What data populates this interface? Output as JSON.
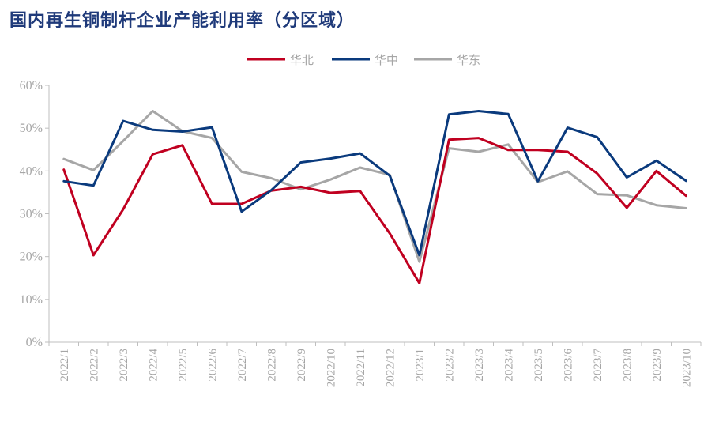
{
  "chart_data": {
    "type": "line",
    "title": "国内再生铜制杆企业产能利用率（分区域）",
    "xlabel": "",
    "ylabel": "",
    "ylim": [
      0,
      60
    ],
    "y_ticks": [
      "0%",
      "10%",
      "20%",
      "30%",
      "40%",
      "50%",
      "60%"
    ],
    "legend_position": "top-center",
    "grid": false,
    "categories": [
      "2022/1",
      "2022/2",
      "2022/3",
      "2022/4",
      "2022/5",
      "2022/6",
      "2022/7",
      "2022/8",
      "2022/9",
      "2022/10",
      "2022/11",
      "2022/12",
      "2023/1",
      "2023/2",
      "2023/3",
      "2023/4",
      "2023/5",
      "2023/6",
      "2023/7",
      "2023/8",
      "2023/9",
      "2023/10"
    ],
    "series": [
      {
        "name": "华北",
        "color": "#c00020",
        "values": [
          40.3,
          20.3,
          31.0,
          43.9,
          46.0,
          32.3,
          32.3,
          35.4,
          36.3,
          34.9,
          35.3,
          25.4,
          13.8,
          47.3,
          47.7,
          44.9,
          44.9,
          44.5,
          39.4,
          31.4,
          40.0,
          34.2
        ]
      },
      {
        "name": "华中",
        "color": "#0a3a7d",
        "values": [
          37.6,
          36.6,
          51.7,
          49.6,
          49.2,
          50.2,
          30.5,
          35.5,
          42.0,
          42.9,
          44.1,
          38.9,
          20.3,
          53.2,
          54.0,
          53.3,
          37.6,
          50.1,
          47.9,
          38.5,
          42.4,
          37.7
        ]
      },
      {
        "name": "华东",
        "color": "#a6a6a6",
        "values": [
          42.8,
          40.2,
          47.0,
          54.0,
          49.3,
          47.7,
          39.8,
          38.3,
          35.7,
          38.0,
          40.8,
          39.1,
          18.8,
          45.3,
          44.5,
          46.2,
          37.4,
          39.9,
          34.6,
          34.3,
          32.0,
          31.3
        ]
      }
    ]
  }
}
